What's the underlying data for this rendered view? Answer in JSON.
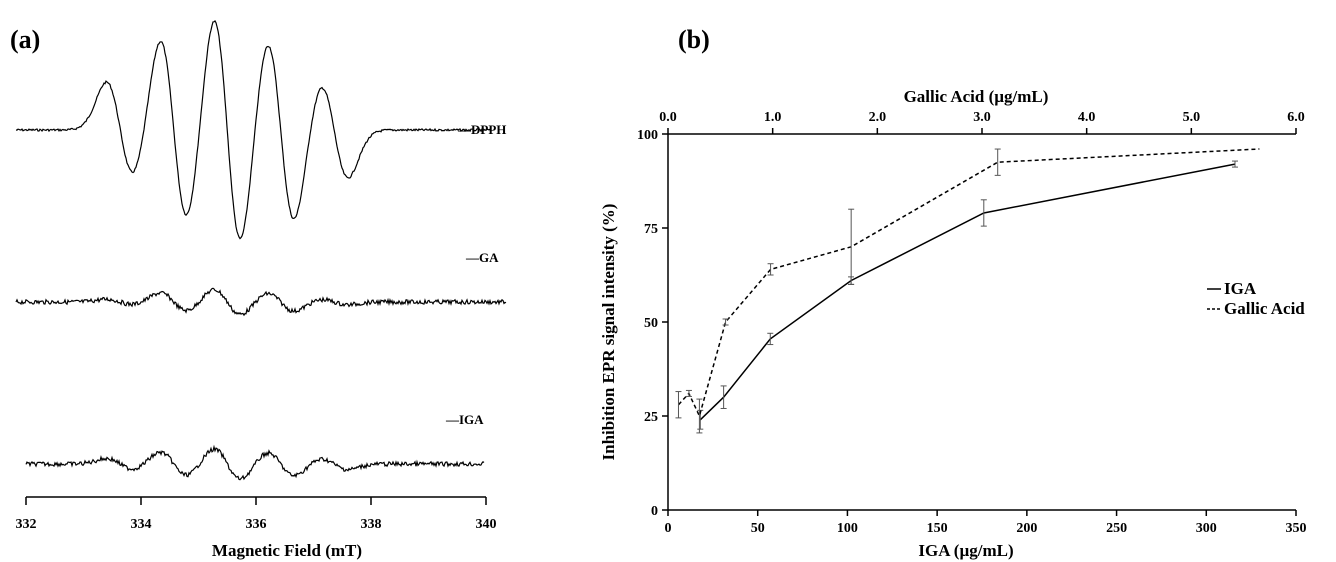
{
  "chart_data": [
    {
      "type": "line",
      "panel_label": "(a)",
      "xlabel": "Magnetic  Field (mT)",
      "ylabel": "",
      "xlim": [
        332,
        340
      ],
      "x_ticks": [
        332,
        334,
        336,
        338,
        340
      ],
      "grid": false,
      "y_axis_shown": false,
      "series": [
        {
          "name": "DPPH",
          "label": "—DPPH",
          "center_mT": 335.5,
          "line_spacing_mT": 0.93,
          "relative_amplitudes": [
            0.52,
            1.0,
            1.25,
            1.0,
            0.52
          ]
        },
        {
          "name": "GA",
          "label": "—GA",
          "center_mT": 335.5,
          "line_spacing_mT": 0.93,
          "relative_amplitudes": [
            0.03,
            0.1,
            0.14,
            0.1,
            0.03
          ]
        },
        {
          "name": "IGA",
          "label": "—IGA",
          "center_mT": 335.5,
          "line_spacing_mT": 0.93,
          "relative_amplitudes": [
            0.06,
            0.13,
            0.17,
            0.13,
            0.06
          ]
        }
      ]
    },
    {
      "type": "line",
      "panel_label": "(b)",
      "xlabel": "IGA (µg/mL)",
      "x2label": "Gallic Acid (µg/mL)",
      "ylabel": "Inhibition EPR signal  intensity (%)",
      "xlim": [
        0,
        350
      ],
      "x2lim": [
        0,
        6
      ],
      "ylim": [
        0,
        100
      ],
      "x_ticks": [
        "0",
        "50",
        "100",
        "150",
        "200",
        "250",
        "300",
        "350"
      ],
      "x2_ticks": [
        "0.0",
        "1.0",
        "2.0",
        "3.0",
        "4.0",
        "5.0",
        "6.0"
      ],
      "y_ticks": [
        "0",
        "25",
        "50",
        "75",
        "100"
      ],
      "grid": false,
      "legend_position": "right",
      "series": [
        {
          "name": "IGA",
          "legend": "IGA",
          "style": "solid",
          "axis": "bottom",
          "x": [
            18,
            31,
            57,
            102,
            176,
            316
          ],
          "y": [
            24,
            30,
            45.5,
            61,
            79,
            92
          ],
          "err": [
            2.5,
            3,
            1.5,
            1,
            3.5,
            0.8
          ]
        },
        {
          "name": "Gallic Acid",
          "legend": "Gallic Acid",
          "style": "dashed",
          "axis": "top",
          "x": [
            0.1,
            0.2,
            0.3,
            0.55,
            0.98,
            1.75,
            3.15,
            5.65
          ],
          "y": [
            28,
            31,
            25,
            50,
            64,
            70,
            92.5,
            96
          ],
          "err": [
            3.5,
            0.8,
            4.5,
            0.8,
            1.5,
            10,
            3.5,
            0
          ]
        }
      ]
    }
  ]
}
